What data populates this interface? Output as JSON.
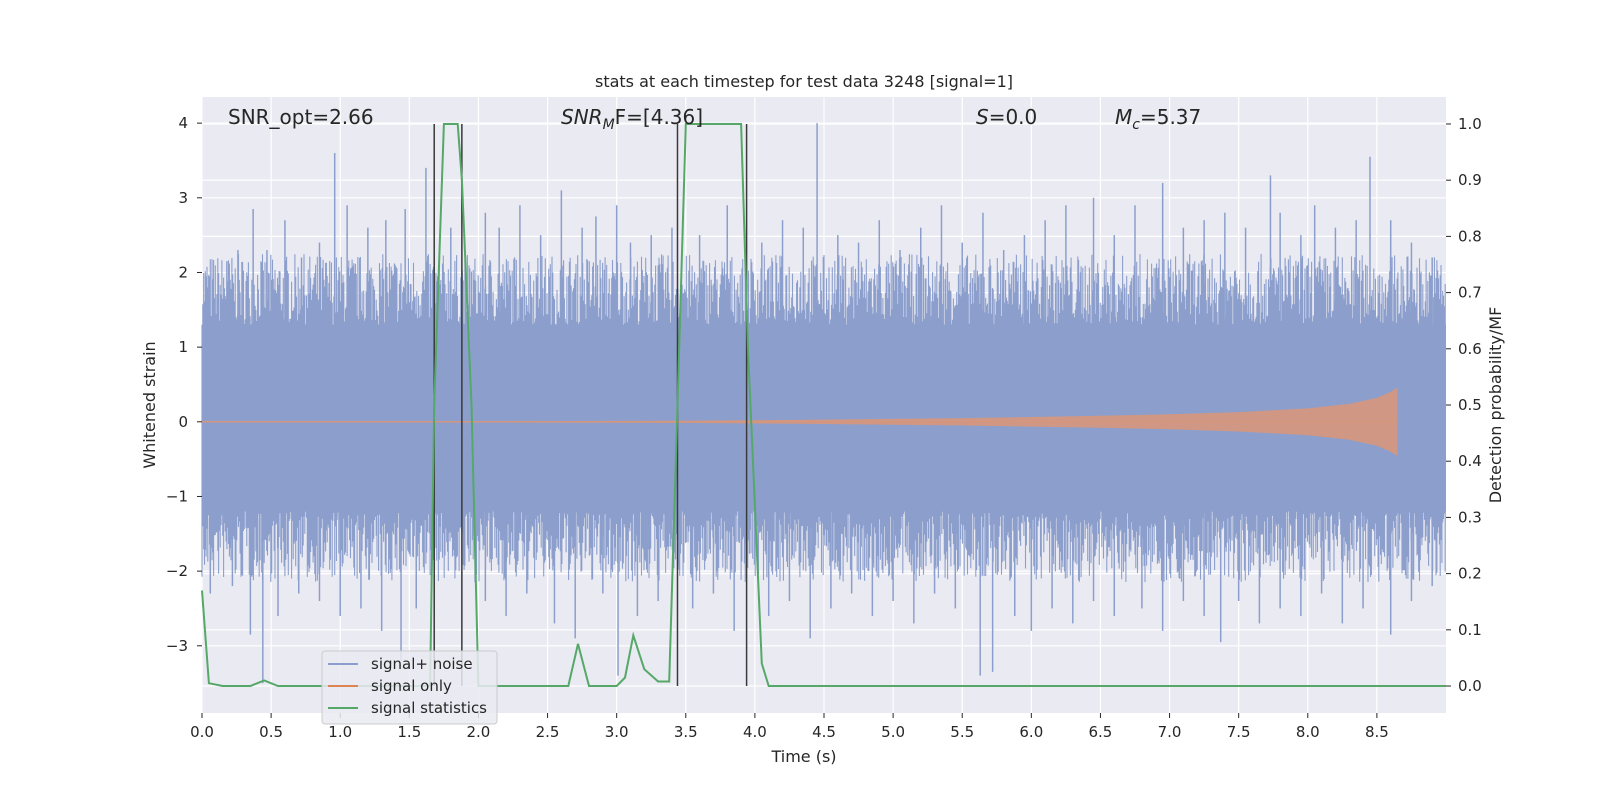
{
  "chart_data": {
    "type": "line",
    "title": "stats at each timestep for test data 3248 [signal=1]",
    "xlabel": "Time (s)",
    "ylabel_left": "Whitened strain",
    "ylabel_right": "Detection probability/MF",
    "xlim": [
      0.0,
      9.0
    ],
    "ylim_left": [
      -3.9,
      4.35
    ],
    "ylim_right": [
      -0.048,
      1.048
    ],
    "x_ticks": [
      "0.0",
      "0.5",
      "1.0",
      "1.5",
      "2.0",
      "2.5",
      "3.0",
      "3.5",
      "4.0",
      "4.5",
      "5.0",
      "5.5",
      "6.0",
      "6.5",
      "7.0",
      "7.5",
      "8.0",
      "8.5"
    ],
    "y_left_ticks": [
      "4",
      "3",
      "2",
      "1",
      "0",
      "−1",
      "−2",
      "−3"
    ],
    "y_right_ticks": [
      "1.0",
      "0.9",
      "0.8",
      "0.7",
      "0.6",
      "0.5",
      "0.4",
      "0.3",
      "0.2",
      "0.1",
      "0.0"
    ],
    "grid": true,
    "background": "#eaeaf2",
    "annotations": {
      "snr_opt": "SNR_opt=2.66",
      "snr_mf_main": "SNR",
      "snr_mf_sub": "M",
      "snr_mf_tail": "F=[4.36]",
      "s_main": "S",
      "s_tail": "=0.0",
      "mc_main": "M",
      "mc_sub": "c",
      "mc_tail": "=5.37"
    },
    "legend": {
      "placement": "lower-left",
      "entries": [
        {
          "label": "signal+ noise",
          "color": "#8c9fcc"
        },
        {
          "label": "signal only",
          "color": "#dd8452"
        },
        {
          "label": "signal statistics",
          "color": "#55a868"
        }
      ]
    },
    "noise_band": {
      "color": "#8c9fcc",
      "core_min": -1.2,
      "core_max": 1.3
    },
    "signal_only": {
      "color": "#d6967c",
      "x": [
        0.0,
        3.5,
        4.5,
        5.5,
        6.5,
        7.0,
        7.5,
        8.0,
        8.3,
        8.5,
        8.6,
        8.65
      ],
      "amplitude": [
        0.0,
        0.015,
        0.03,
        0.05,
        0.08,
        0.1,
        0.13,
        0.18,
        0.24,
        0.32,
        0.4,
        0.46
      ]
    },
    "series": [
      {
        "name": "signal statistics",
        "color": "#55a868",
        "x": [
          0.0,
          0.05,
          0.15,
          0.35,
          0.45,
          0.55,
          1.0,
          1.5,
          1.65,
          1.68,
          1.75,
          1.85,
          1.88,
          1.95,
          2.0,
          2.5,
          2.65,
          2.72,
          2.8,
          3.0,
          3.06,
          3.12,
          3.2,
          3.3,
          3.38,
          3.44,
          3.5,
          3.7,
          3.9,
          3.95,
          4.05,
          4.1,
          4.15,
          4.5,
          5.0,
          6.0,
          7.0,
          8.0,
          9.0
        ],
        "y": [
          0.17,
          0.005,
          0.0,
          0.0,
          0.01,
          0.0,
          0.0,
          0.0,
          0.0,
          0.5,
          1.0,
          1.0,
          0.9,
          0.5,
          0.0,
          0.0,
          0.0,
          0.075,
          0.0,
          0.0,
          0.015,
          0.09,
          0.03,
          0.008,
          0.008,
          0.5,
          1.0,
          1.0,
          1.0,
          0.6,
          0.04,
          0.0,
          0.0,
          0.0,
          0.0,
          0.0,
          0.0,
          0.0,
          0.0
        ]
      }
    ],
    "vlines": {
      "color": "#3a3a3a",
      "x": [
        1.68,
        1.88,
        3.44,
        3.94
      ],
      "y_top": 1.0,
      "y_bottom": 0.0
    },
    "noise_spikes_up": [
      {
        "x": 0.04,
        "y": 1.8
      },
      {
        "x": 0.18,
        "y": 2.15
      },
      {
        "x": 0.26,
        "y": 2.3
      },
      {
        "x": 0.37,
        "y": 2.85
      },
      {
        "x": 0.47,
        "y": 2.3
      },
      {
        "x": 0.6,
        "y": 2.7
      },
      {
        "x": 0.72,
        "y": 2.2
      },
      {
        "x": 0.85,
        "y": 2.4
      },
      {
        "x": 0.96,
        "y": 3.6
      },
      {
        "x": 1.05,
        "y": 2.9
      },
      {
        "x": 1.2,
        "y": 2.6
      },
      {
        "x": 1.33,
        "y": 2.7
      },
      {
        "x": 1.47,
        "y": 2.85
      },
      {
        "x": 1.62,
        "y": 3.4
      },
      {
        "x": 1.8,
        "y": 2.6
      },
      {
        "x": 2.05,
        "y": 2.8
      },
      {
        "x": 2.15,
        "y": 2.6
      },
      {
        "x": 2.3,
        "y": 2.9
      },
      {
        "x": 2.45,
        "y": 2.5
      },
      {
        "x": 2.6,
        "y": 3.1
      },
      {
        "x": 2.75,
        "y": 2.6
      },
      {
        "x": 2.85,
        "y": 2.75
      },
      {
        "x": 3.0,
        "y": 2.9
      },
      {
        "x": 3.1,
        "y": 2.4
      },
      {
        "x": 3.25,
        "y": 2.5
      },
      {
        "x": 3.4,
        "y": 2.6
      },
      {
        "x": 3.6,
        "y": 2.5
      },
      {
        "x": 3.8,
        "y": 2.9
      },
      {
        "x": 4.05,
        "y": 2.4
      },
      {
        "x": 4.2,
        "y": 2.7
      },
      {
        "x": 4.35,
        "y": 2.6
      },
      {
        "x": 4.45,
        "y": 4.0
      },
      {
        "x": 4.6,
        "y": 2.5
      },
      {
        "x": 4.75,
        "y": 2.4
      },
      {
        "x": 4.9,
        "y": 2.7
      },
      {
        "x": 5.05,
        "y": 2.3
      },
      {
        "x": 5.2,
        "y": 2.6
      },
      {
        "x": 5.35,
        "y": 2.9
      },
      {
        "x": 5.5,
        "y": 2.4
      },
      {
        "x": 5.65,
        "y": 2.8
      },
      {
        "x": 5.8,
        "y": 2.3
      },
      {
        "x": 5.95,
        "y": 2.5
      },
      {
        "x": 6.1,
        "y": 2.7
      },
      {
        "x": 6.25,
        "y": 2.9
      },
      {
        "x": 6.45,
        "y": 3.0
      },
      {
        "x": 6.6,
        "y": 2.5
      },
      {
        "x": 6.75,
        "y": 2.9
      },
      {
        "x": 6.95,
        "y": 3.2
      },
      {
        "x": 7.1,
        "y": 2.6
      },
      {
        "x": 7.25,
        "y": 2.7
      },
      {
        "x": 7.4,
        "y": 2.8
      },
      {
        "x": 7.55,
        "y": 2.6
      },
      {
        "x": 7.73,
        "y": 3.3
      },
      {
        "x": 7.8,
        "y": 2.8
      },
      {
        "x": 7.95,
        "y": 2.5
      },
      {
        "x": 8.05,
        "y": 2.9
      },
      {
        "x": 8.2,
        "y": 2.6
      },
      {
        "x": 8.35,
        "y": 2.7
      },
      {
        "x": 8.45,
        "y": 3.55
      },
      {
        "x": 8.6,
        "y": 2.7
      },
      {
        "x": 8.75,
        "y": 2.4
      },
      {
        "x": 8.9,
        "y": 2.2
      }
    ],
    "noise_spikes_down": [
      {
        "x": 0.06,
        "y": -2.3
      },
      {
        "x": 0.22,
        "y": -2.2
      },
      {
        "x": 0.35,
        "y": -2.85
      },
      {
        "x": 0.44,
        "y": -3.5
      },
      {
        "x": 0.55,
        "y": -2.6
      },
      {
        "x": 0.7,
        "y": -2.3
      },
      {
        "x": 0.85,
        "y": -2.4
      },
      {
        "x": 1.0,
        "y": -2.6
      },
      {
        "x": 1.15,
        "y": -2.5
      },
      {
        "x": 1.3,
        "y": -2.8
      },
      {
        "x": 1.44,
        "y": -3.2
      },
      {
        "x": 1.55,
        "y": -2.5
      },
      {
        "x": 2.05,
        "y": -2.4
      },
      {
        "x": 2.2,
        "y": -2.6
      },
      {
        "x": 2.35,
        "y": -2.3
      },
      {
        "x": 2.55,
        "y": -2.7
      },
      {
        "x": 2.7,
        "y": -2.9
      },
      {
        "x": 2.9,
        "y": -2.3
      },
      {
        "x": 3.01,
        "y": -3.4
      },
      {
        "x": 3.15,
        "y": -2.6
      },
      {
        "x": 3.3,
        "y": -2.4
      },
      {
        "x": 3.55,
        "y": -2.5
      },
      {
        "x": 3.7,
        "y": -2.3
      },
      {
        "x": 3.85,
        "y": -2.8
      },
      {
        "x": 4.1,
        "y": -2.6
      },
      {
        "x": 4.25,
        "y": -2.4
      },
      {
        "x": 4.4,
        "y": -2.9
      },
      {
        "x": 4.55,
        "y": -2.5
      },
      {
        "x": 4.7,
        "y": -2.3
      },
      {
        "x": 4.85,
        "y": -2.6
      },
      {
        "x": 5.0,
        "y": -2.4
      },
      {
        "x": 5.15,
        "y": -2.7
      },
      {
        "x": 5.3,
        "y": -2.3
      },
      {
        "x": 5.45,
        "y": -2.5
      },
      {
        "x": 5.63,
        "y": -3.4
      },
      {
        "x": 5.72,
        "y": -3.35
      },
      {
        "x": 5.88,
        "y": -2.6
      },
      {
        "x": 6.0,
        "y": -2.8
      },
      {
        "x": 6.15,
        "y": -2.5
      },
      {
        "x": 6.3,
        "y": -2.7
      },
      {
        "x": 6.45,
        "y": -2.4
      },
      {
        "x": 6.6,
        "y": -2.6
      },
      {
        "x": 6.8,
        "y": -2.5
      },
      {
        "x": 6.95,
        "y": -2.8
      },
      {
        "x": 7.1,
        "y": -2.4
      },
      {
        "x": 7.25,
        "y": -2.6
      },
      {
        "x": 7.37,
        "y": -2.95
      },
      {
        "x": 7.5,
        "y": -2.4
      },
      {
        "x": 7.65,
        "y": -2.7
      },
      {
        "x": 7.8,
        "y": -2.5
      },
      {
        "x": 7.95,
        "y": -2.6
      },
      {
        "x": 8.1,
        "y": -2.3
      },
      {
        "x": 8.25,
        "y": -2.7
      },
      {
        "x": 8.4,
        "y": -2.5
      },
      {
        "x": 8.6,
        "y": -2.85
      },
      {
        "x": 8.75,
        "y": -2.4
      },
      {
        "x": 8.9,
        "y": -2.2
      }
    ]
  }
}
